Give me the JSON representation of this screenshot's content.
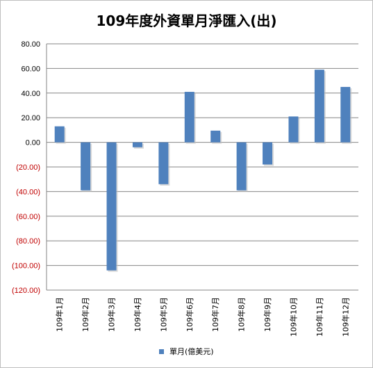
{
  "chart_data": {
    "type": "bar",
    "title": "109年度外資單月淨匯入(出)",
    "categories": [
      "109年1月",
      "109年2月",
      "109年3月",
      "109年4月",
      "109年5月",
      "109年6月",
      "109年7月",
      "109年8月",
      "109年9月",
      "109年10月",
      "109年11月",
      "109年12月"
    ],
    "series": [
      {
        "name": "單月(億美元)",
        "values": [
          13.0,
          -39.0,
          -104.0,
          -4.0,
          -34.0,
          41.0,
          9.5,
          -39.0,
          -18.0,
          21.0,
          59.0,
          45.0
        ],
        "color": "#4f81bd"
      }
    ],
    "ylim": [
      -120,
      80
    ],
    "yticks": [
      "80.00",
      "60.00",
      "40.00",
      "20.00",
      "0.00",
      "(20.00)",
      "(40.00)",
      "(60.00)",
      "(80.00)",
      "(100.00)",
      "(120.00)"
    ],
    "ytick_values": [
      80,
      60,
      40,
      20,
      0,
      -20,
      -40,
      -60,
      -80,
      -100,
      -120
    ],
    "positive_tick_color": "#000000",
    "negative_tick_color": "#c00000",
    "grid": true,
    "legend_position": "bottom"
  }
}
